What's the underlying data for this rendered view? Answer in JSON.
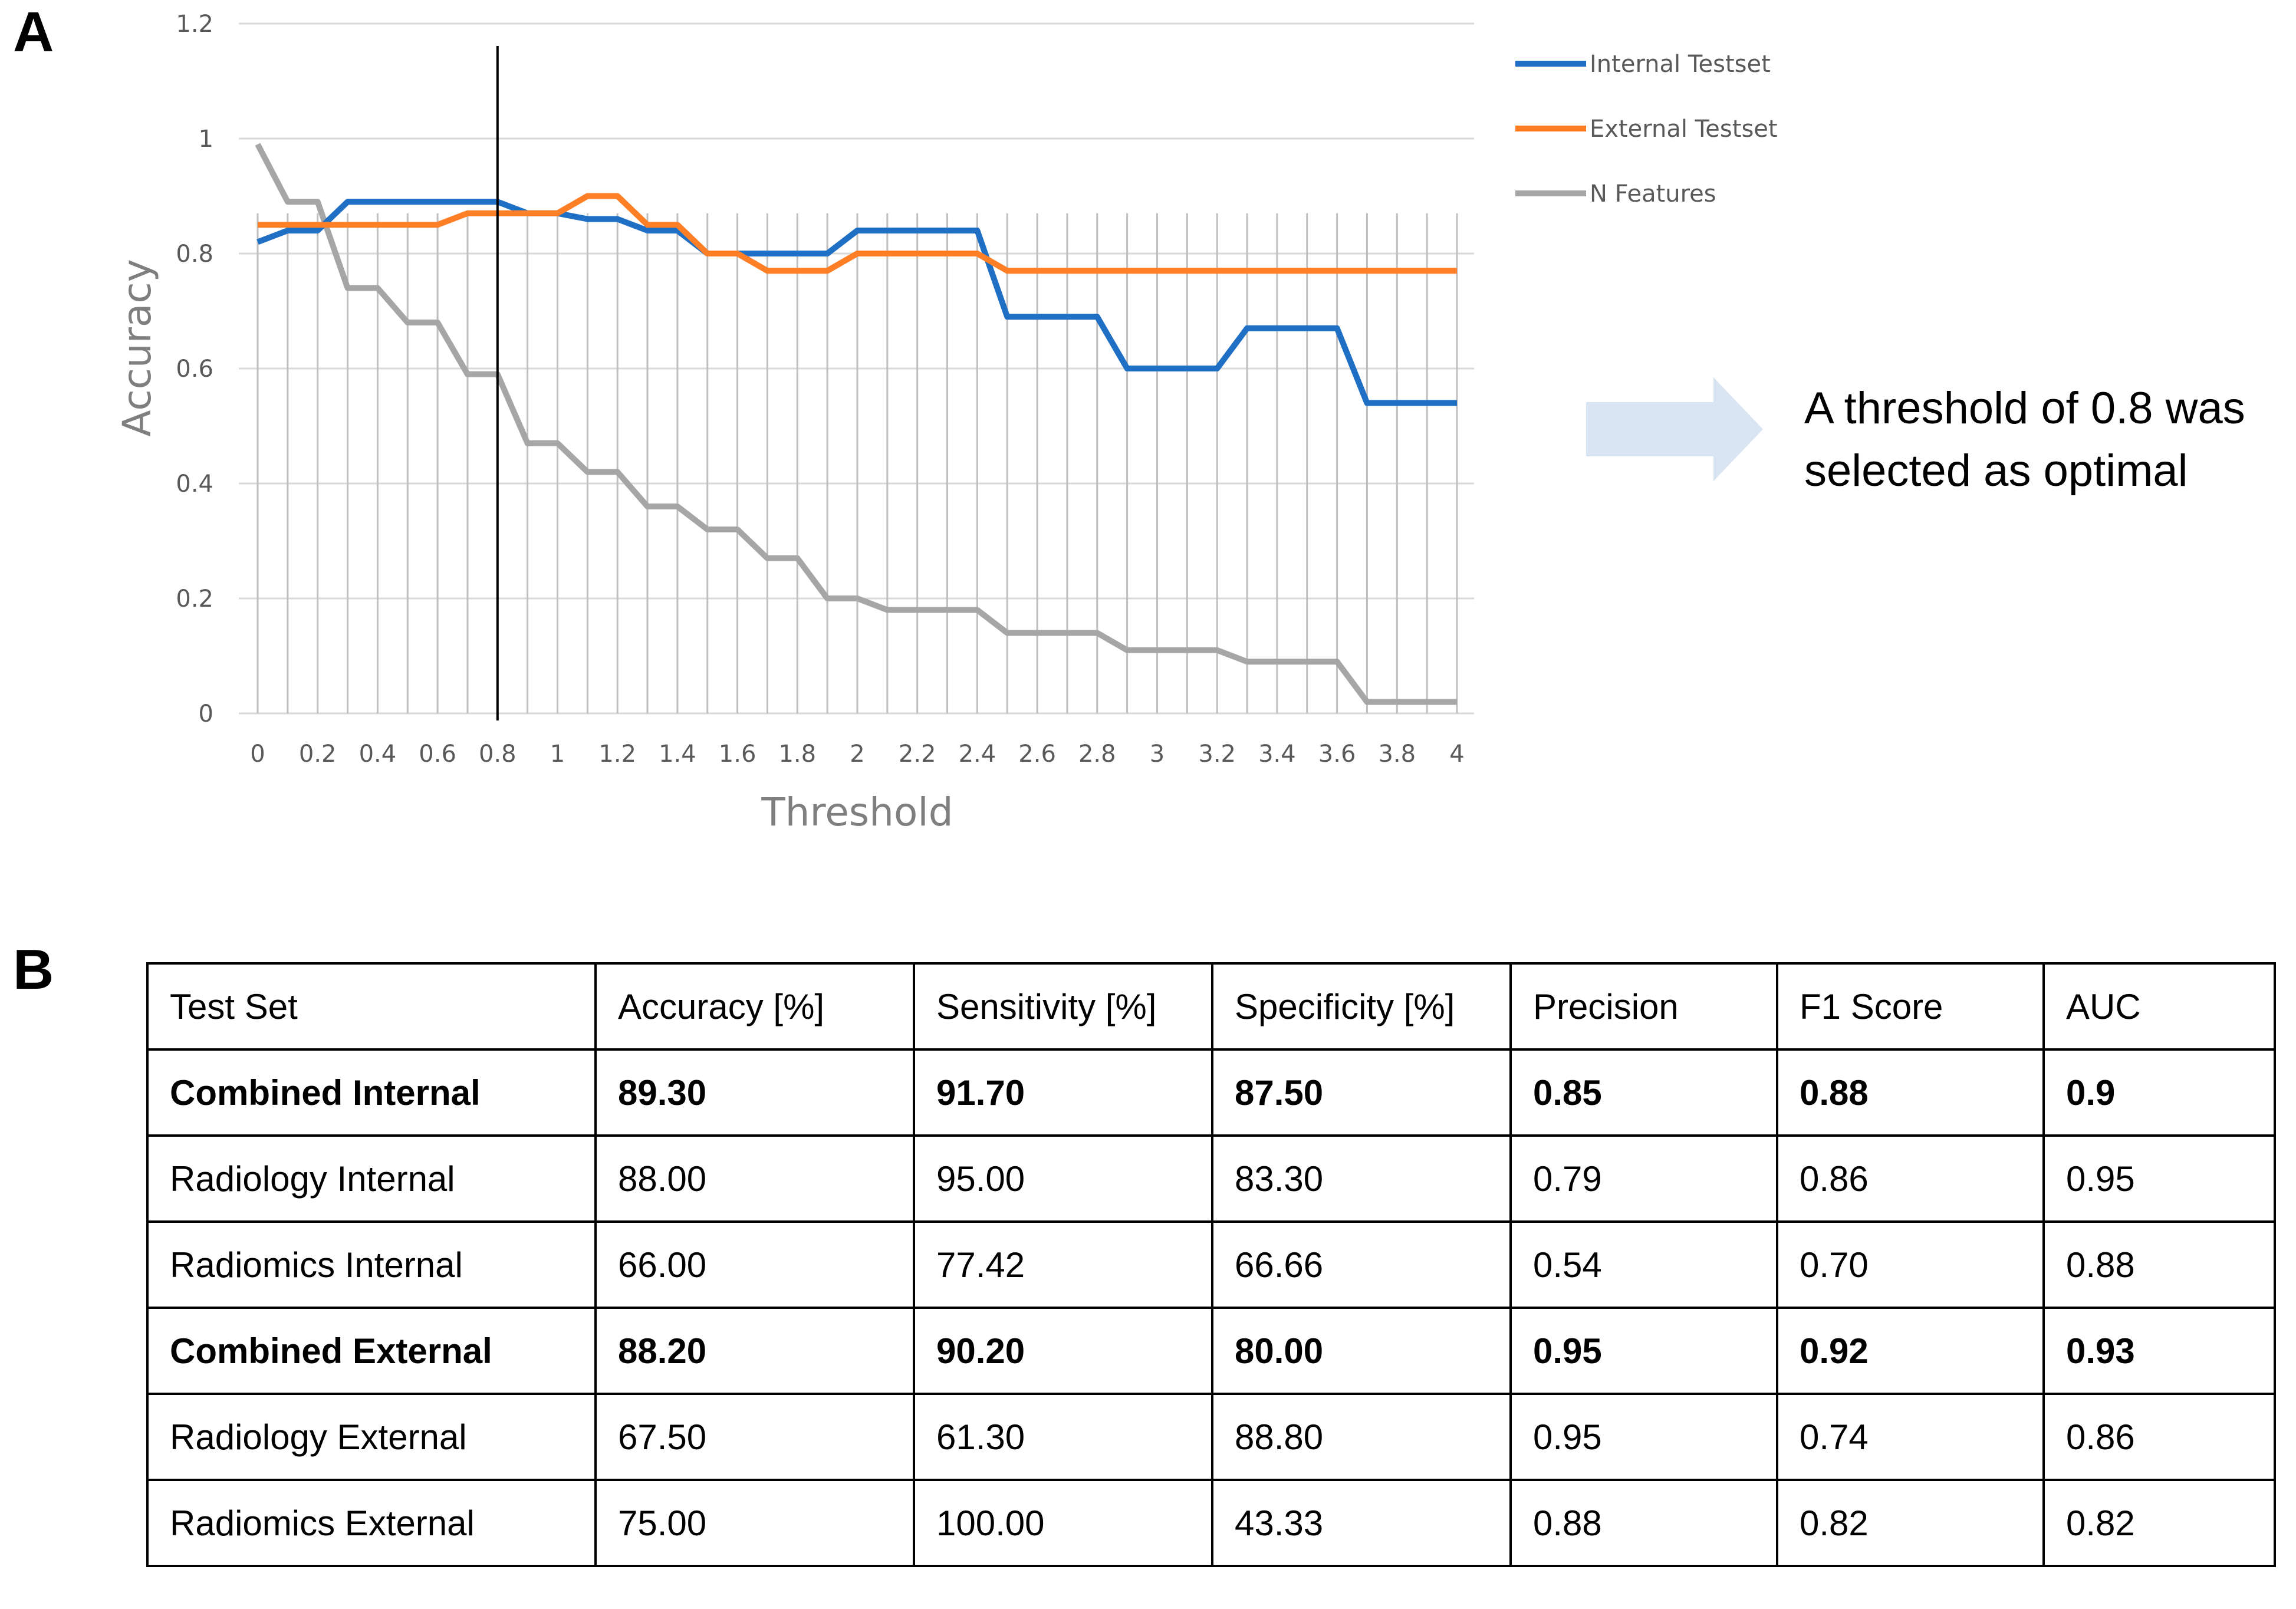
{
  "panel_a_label": "A",
  "panel_b_label": "B",
  "annotation": {
    "line1": "A threshold of 0.8 was",
    "line2": "selected as optimal"
  },
  "colors": {
    "internal": "#1f6fc5",
    "external": "#ff7f27",
    "features": "#a6a6a6",
    "arrow": "#dae5f4",
    "grid": "#d9d9d9"
  },
  "chart_data": {
    "type": "line",
    "xlabel": "Threshold",
    "ylabel": "Accuracy",
    "ylim": [
      0,
      1.2
    ],
    "xlim": [
      0,
      4
    ],
    "y_ticks": [
      "0",
      "0.2",
      "0.4",
      "0.6",
      "0.8",
      "1",
      "1.2"
    ],
    "x_ticks": [
      "0",
      "0.2",
      "0.4",
      "0.6",
      "0.8",
      "1",
      "1.2",
      "1.4",
      "1.6",
      "1.8",
      "2",
      "2.2",
      "2.4",
      "2.6",
      "2.8",
      "3",
      "3.2",
      "3.4",
      "3.6",
      "3.8",
      "4"
    ],
    "x": [
      0,
      0.1,
      0.2,
      0.3,
      0.4,
      0.5,
      0.6,
      0.7,
      0.8,
      0.9,
      1.0,
      1.1,
      1.2,
      1.3,
      1.4,
      1.5,
      1.6,
      1.7,
      1.8,
      1.9,
      2.0,
      2.1,
      2.2,
      2.3,
      2.4,
      2.5,
      2.6,
      2.7,
      2.8,
      2.9,
      3.0,
      3.1,
      3.2,
      3.3,
      3.4,
      3.5,
      3.6,
      3.7,
      3.8,
      3.9,
      4.0
    ],
    "selected_threshold": 0.8,
    "legend_position": "top-right",
    "series": [
      {
        "name": "Internal Testset",
        "values": [
          0.82,
          0.84,
          0.84,
          0.89,
          0.89,
          0.89,
          0.89,
          0.89,
          0.89,
          0.87,
          0.87,
          0.86,
          0.86,
          0.84,
          0.84,
          0.8,
          0.8,
          0.8,
          0.8,
          0.8,
          0.84,
          0.84,
          0.84,
          0.84,
          0.84,
          0.69,
          0.69,
          0.69,
          0.69,
          0.6,
          0.6,
          0.6,
          0.6,
          0.67,
          0.67,
          0.67,
          0.67,
          0.54,
          0.54,
          0.54,
          0.54
        ]
      },
      {
        "name": "External Testset",
        "values": [
          0.85,
          0.85,
          0.85,
          0.85,
          0.85,
          0.85,
          0.85,
          0.87,
          0.87,
          0.87,
          0.87,
          0.9,
          0.9,
          0.85,
          0.85,
          0.8,
          0.8,
          0.77,
          0.77,
          0.77,
          0.8,
          0.8,
          0.8,
          0.8,
          0.8,
          0.77,
          0.77,
          0.77,
          0.77,
          0.77,
          0.77,
          0.77,
          0.77,
          0.77,
          0.77,
          0.77,
          0.77,
          0.77,
          0.77,
          0.77,
          0.77
        ]
      },
      {
        "name": "N Features",
        "values": [
          0.99,
          0.89,
          0.89,
          0.74,
          0.74,
          0.68,
          0.68,
          0.59,
          0.59,
          0.47,
          0.47,
          0.42,
          0.42,
          0.36,
          0.36,
          0.32,
          0.32,
          0.27,
          0.27,
          0.2,
          0.2,
          0.18,
          0.18,
          0.18,
          0.18,
          0.14,
          0.14,
          0.14,
          0.14,
          0.11,
          0.11,
          0.11,
          0.11,
          0.09,
          0.09,
          0.09,
          0.09,
          0.02,
          0.02,
          0.02,
          0.02
        ]
      }
    ]
  },
  "table": {
    "headers": [
      "Test Set",
      "Accuracy [%]",
      "Sensitivity [%]",
      "Specificity [%]",
      "Precision",
      "F1 Score",
      "AUC"
    ],
    "rows": [
      {
        "bold": true,
        "cells": [
          "Combined Internal",
          "89.30",
          "91.70",
          "87.50",
          "0.85",
          "0.88",
          "0.9"
        ]
      },
      {
        "bold": false,
        "cells": [
          "Radiology Internal",
          "88.00",
          "95.00",
          "83.30",
          "0.79",
          "0.86",
          "0.95"
        ]
      },
      {
        "bold": false,
        "cells": [
          "Radiomics Internal",
          "66.00",
          "77.42",
          "66.66",
          "0.54",
          "0.70",
          "0.88"
        ]
      },
      {
        "bold": true,
        "cells": [
          "Combined External",
          "88.20",
          "90.20",
          "80.00",
          "0.95",
          "0.92",
          "0.93"
        ]
      },
      {
        "bold": false,
        "cells": [
          "Radiology External",
          "67.50",
          "61.30",
          "88.80",
          "0.95",
          "0.74",
          "0.86"
        ]
      },
      {
        "bold": false,
        "cells": [
          "Radiomics External",
          "75.00",
          "100.00",
          "43.33",
          "0.88",
          "0.82",
          "0.82"
        ]
      }
    ]
  }
}
